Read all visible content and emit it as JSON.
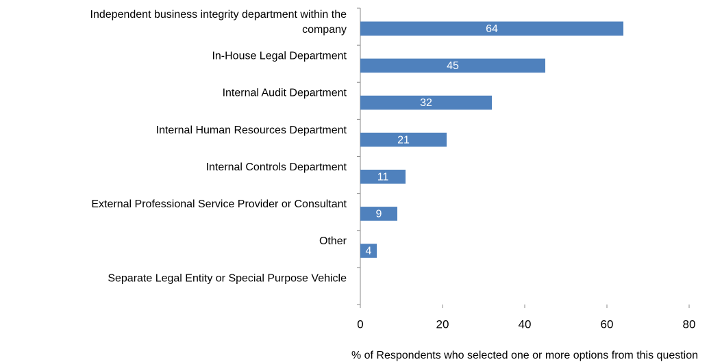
{
  "chart_data": {
    "type": "bar",
    "orientation": "horizontal",
    "categories": [
      "Independent business integrity department within the company",
      "In-House Legal Department",
      "Internal Audit Department",
      "Internal Human Resources Department",
      "Internal Controls Department",
      "External Professional Service Provider or Consultant",
      "Other",
      "Separate Legal Entity or Special Purpose Vehicle"
    ],
    "values": [
      64,
      45,
      32,
      21,
      11,
      9,
      4,
      null
    ],
    "color": "#4f81bd",
    "xlim": [
      0,
      80
    ],
    "xticks": [
      0,
      20,
      40,
      60,
      80
    ],
    "x_label": "% of Respondents who selected one or more options from this question"
  }
}
